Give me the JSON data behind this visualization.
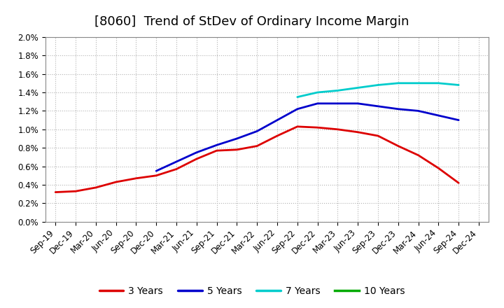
{
  "title": "[8060]  Trend of StDev of Ordinary Income Margin",
  "x_labels": [
    "Sep-19",
    "Dec-19",
    "Mar-20",
    "Jun-20",
    "Sep-20",
    "Dec-20",
    "Mar-21",
    "Jun-21",
    "Sep-21",
    "Dec-21",
    "Mar-22",
    "Jun-22",
    "Sep-22",
    "Dec-22",
    "Mar-23",
    "Jun-23",
    "Sep-23",
    "Dec-23",
    "Mar-24",
    "Jun-24",
    "Sep-24",
    "Dec-24"
  ],
  "series": {
    "3 Years": {
      "color": "#dd0000",
      "linewidth": 2.0,
      "data": [
        0.0032,
        0.0033,
        0.0037,
        0.0043,
        0.0047,
        0.005,
        0.0057,
        0.0068,
        0.0077,
        0.0078,
        0.0082,
        0.0093,
        0.0103,
        0.0102,
        0.01,
        0.0097,
        0.0093,
        0.0082,
        0.0072,
        0.0058,
        0.0042,
        null
      ]
    },
    "5 Years": {
      "color": "#0000cc",
      "linewidth": 2.0,
      "data": [
        null,
        null,
        null,
        null,
        null,
        0.0055,
        0.0065,
        0.0075,
        0.0083,
        0.009,
        0.0098,
        0.011,
        0.0122,
        0.0128,
        0.0128,
        0.0128,
        0.0125,
        0.0122,
        0.012,
        0.0115,
        0.011,
        null
      ]
    },
    "7 Years": {
      "color": "#00cccc",
      "linewidth": 2.0,
      "data": [
        null,
        null,
        null,
        null,
        null,
        null,
        null,
        null,
        null,
        null,
        null,
        null,
        0.0135,
        0.014,
        0.0142,
        0.0145,
        0.0148,
        0.015,
        0.015,
        0.015,
        0.0148,
        null
      ]
    },
    "10 Years": {
      "color": "#00aa00",
      "linewidth": 2.0,
      "data": [
        null,
        null,
        null,
        null,
        null,
        null,
        null,
        null,
        null,
        null,
        null,
        null,
        null,
        null,
        null,
        null,
        null,
        null,
        null,
        null,
        null,
        null
      ]
    }
  },
  "ylim": [
    0.0,
    0.02
  ],
  "yticks": [
    0.0,
    0.002,
    0.004,
    0.006,
    0.008,
    0.01,
    0.012,
    0.014,
    0.016,
    0.018,
    0.02
  ],
  "ytick_labels": [
    "0.0%",
    "0.2%",
    "0.4%",
    "0.6%",
    "0.8%",
    "1.0%",
    "1.2%",
    "1.4%",
    "1.6%",
    "1.8%",
    "2.0%"
  ],
  "background_color": "#ffffff",
  "plot_bg_color": "#ffffff",
  "grid_color": "#aaaaaa",
  "title_fontsize": 13,
  "tick_fontsize": 8.5,
  "legend_fontsize": 10
}
